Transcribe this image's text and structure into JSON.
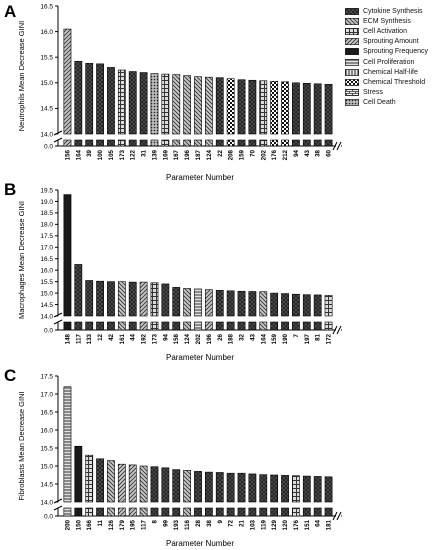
{
  "panels": [
    "A",
    "B",
    "C"
  ],
  "legend": [
    {
      "label": "Cytokine Synthesis",
      "pattern": "crosshatch"
    },
    {
      "label": "ECM Synthesis",
      "pattern": "backdiag"
    },
    {
      "label": "Cell Activation",
      "pattern": "grid"
    },
    {
      "label": "Sprouting Amount",
      "pattern": "diag"
    },
    {
      "label": "Sprouting Frequency",
      "pattern": "solid"
    },
    {
      "label": "Cell Proliferation",
      "pattern": "horizontal"
    },
    {
      "label": "Chemical Half-life",
      "pattern": "vertical"
    },
    {
      "label": "Chemical Threshold",
      "pattern": "checker"
    },
    {
      "label": "Stress",
      "pattern": "brick"
    },
    {
      "label": "Cell Death",
      "pattern": "dots"
    }
  ],
  "chart_data": [
    {
      "type": "bar",
      "panel": "A",
      "xlabel": "Parameter Number",
      "ylabel": "Neutrophils Mean Decrease GINI",
      "ylim": [
        14.0,
        16.5
      ],
      "axis_break": [
        0.2,
        14.0
      ],
      "yticks": [
        "0.0",
        "14.0",
        "14.5",
        "15.0",
        "15.5",
        "16.0",
        "16.5"
      ],
      "categories": [
        "156",
        "164",
        "39",
        "100",
        "105",
        "173",
        "122",
        "31",
        "139",
        "169",
        "167",
        "196",
        "187",
        "124",
        "22",
        "208",
        "159",
        "70",
        "202",
        "176",
        "212",
        "94",
        "43",
        "38",
        "60"
      ],
      "values": [
        16.05,
        15.42,
        15.38,
        15.37,
        15.3,
        15.25,
        15.22,
        15.2,
        15.18,
        15.17,
        15.16,
        15.14,
        15.12,
        15.11,
        15.1,
        15.08,
        15.06,
        15.05,
        15.04,
        15.03,
        15.02,
        15.0,
        14.99,
        14.98,
        14.97
      ],
      "patterns": [
        "diag",
        "crosshatch",
        "crosshatch",
        "crosshatch",
        "crosshatch",
        "grid",
        "crosshatch",
        "crosshatch",
        "dots",
        "grid",
        "backdiag",
        "backdiag",
        "backdiag",
        "backdiag",
        "crosshatch",
        "checker",
        "crosshatch",
        "crosshatch",
        "grid",
        "checker",
        "checker",
        "crosshatch",
        "crosshatch",
        "crosshatch",
        "crosshatch"
      ]
    },
    {
      "type": "bar",
      "panel": "B",
      "xlabel": "Parameter Number",
      "ylabel": "Macrophages Mean Decrease GINI",
      "ylim": [
        14.0,
        19.5
      ],
      "axis_break": [
        0.2,
        14.0
      ],
      "yticks": [
        "0.0",
        "14.0",
        "14.5",
        "15.0",
        "15.5",
        "16.0",
        "16.5",
        "17.0",
        "17.5",
        "18.0",
        "18.5",
        "19.0",
        "19.5"
      ],
      "categories": [
        "148",
        "117",
        "133",
        "12",
        "42",
        "161",
        "44",
        "192",
        "173",
        "94",
        "158",
        "124",
        "202",
        "196",
        "26",
        "188",
        "32",
        "43",
        "164",
        "159",
        "190",
        "7",
        "197",
        "81",
        "172"
      ],
      "values": [
        19.3,
        16.25,
        15.55,
        15.52,
        15.5,
        15.5,
        15.48,
        15.48,
        15.45,
        15.4,
        15.25,
        15.2,
        15.18,
        15.15,
        15.12,
        15.1,
        15.08,
        15.07,
        15.06,
        15.0,
        14.98,
        14.95,
        14.93,
        14.92,
        14.9
      ],
      "patterns": [
        "solid",
        "crosshatch",
        "crosshatch",
        "crosshatch",
        "crosshatch",
        "backdiag",
        "crosshatch",
        "diag",
        "grid",
        "crosshatch",
        "crosshatch",
        "backdiag",
        "horizontal",
        "diag",
        "crosshatch",
        "crosshatch",
        "crosshatch",
        "crosshatch",
        "backdiag",
        "crosshatch",
        "crosshatch",
        "crosshatch",
        "crosshatch",
        "crosshatch",
        "grid"
      ]
    },
    {
      "type": "bar",
      "panel": "C",
      "xlabel": "Parameter Number",
      "ylabel": "Fibroblasts Mean Decrease GINI",
      "ylim": [
        14.0,
        17.5
      ],
      "axis_break": [
        0.2,
        14.0
      ],
      "yticks": [
        "0.0",
        "14.0",
        "14.5",
        "15.0",
        "15.5",
        "16.0",
        "16.5",
        "17.0",
        "17.5"
      ],
      "categories": [
        "200",
        "150",
        "166",
        "11",
        "126",
        "179",
        "195",
        "117",
        "8",
        "99",
        "193",
        "116",
        "28",
        "38",
        "9",
        "72",
        "21",
        "103",
        "119",
        "129",
        "120",
        "176",
        "151",
        "64",
        "181"
      ],
      "values": [
        17.2,
        15.55,
        15.3,
        15.2,
        15.15,
        15.05,
        15.03,
        15.0,
        14.98,
        14.95,
        14.9,
        14.88,
        14.85,
        14.83,
        14.82,
        14.8,
        14.8,
        14.78,
        14.76,
        14.75,
        14.74,
        14.73,
        14.72,
        14.71,
        14.7
      ],
      "patterns": [
        "horizontal",
        "solid",
        "grid",
        "crosshatch",
        "backdiag",
        "diag",
        "diag",
        "backdiag",
        "crosshatch",
        "crosshatch",
        "crosshatch",
        "backdiag",
        "crosshatch",
        "crosshatch",
        "crosshatch",
        "crosshatch",
        "crosshatch",
        "crosshatch",
        "crosshatch",
        "crosshatch",
        "crosshatch",
        "grid",
        "crosshatch",
        "crosshatch",
        "crosshatch"
      ]
    }
  ]
}
